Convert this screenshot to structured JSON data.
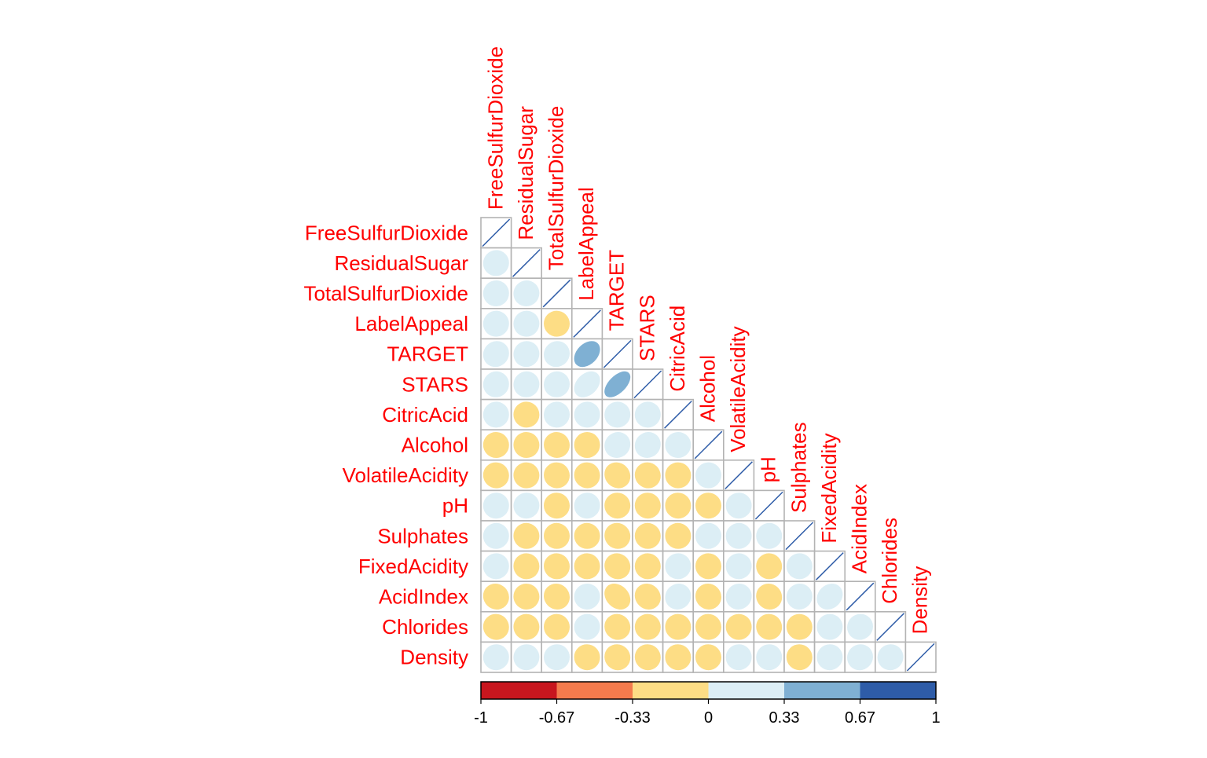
{
  "chart_data": {
    "type": "heatmap",
    "subtype": "correlation-matrix-lower-triangle",
    "title": "",
    "method": "ellipse",
    "variables": [
      "FreeSulfurDioxide",
      "ResidualSugar",
      "TotalSulfurDioxide",
      "LabelAppeal",
      "TARGET",
      "STARS",
      "CitricAcid",
      "Alcohol",
      "VolatileAcidity",
      "pH",
      "Sulphates",
      "FixedAcidity",
      "AcidIndex",
      "Chlorides",
      "Density"
    ],
    "matrix": [
      [
        1.0,
        0.02,
        0.01,
        0.01,
        0.06,
        0.02,
        0.01,
        -0.01,
        -0.02,
        0.01,
        0.01,
        0.01,
        -0.06,
        -0.02,
        0.01
      ],
      [
        0.02,
        1.0,
        0.02,
        0.01,
        0.02,
        0.02,
        -0.01,
        -0.01,
        -0.01,
        0.01,
        -0.01,
        -0.01,
        -0.01,
        -0.01,
        0.01
      ],
      [
        0.01,
        0.02,
        1.0,
        -0.01,
        0.05,
        0.02,
        0.01,
        -0.02,
        -0.02,
        -0.01,
        -0.01,
        -0.02,
        -0.05,
        -0.01,
        0.01
      ],
      [
        0.01,
        0.01,
        -0.01,
        1.0,
        0.36,
        0.33,
        0.01,
        0.0,
        -0.02,
        0.01,
        -0.01,
        -0.01,
        0.01,
        0.01,
        -0.01
      ],
      [
        0.06,
        0.02,
        0.05,
        0.36,
        1.0,
        0.56,
        0.01,
        0.06,
        -0.09,
        -0.01,
        -0.04,
        -0.05,
        -0.25,
        -0.04,
        -0.04
      ],
      [
        0.02,
        0.02,
        0.02,
        0.33,
        0.56,
        1.0,
        0.01,
        0.06,
        -0.04,
        -0.01,
        -0.01,
        -0.01,
        -0.09,
        -0.01,
        -0.02
      ],
      [
        0.01,
        -0.01,
        0.01,
        0.01,
        0.01,
        0.01,
        1.0,
        0.01,
        -0.01,
        -0.01,
        -0.01,
        0.01,
        0.06,
        -0.01,
        -0.01
      ],
      [
        -0.01,
        -0.01,
        -0.02,
        0.0,
        0.06,
        0.06,
        0.01,
        1.0,
        0.01,
        -0.01,
        0.01,
        -0.01,
        -0.04,
        -0.02,
        -0.01
      ],
      [
        -0.02,
        -0.01,
        -0.02,
        -0.02,
        -0.09,
        -0.04,
        -0.01,
        0.01,
        1.0,
        0.01,
        0.01,
        0.01,
        0.04,
        0.0,
        0.01
      ],
      [
        0.01,
        0.01,
        -0.01,
        0.01,
        -0.01,
        -0.01,
        -0.01,
        -0.01,
        0.01,
        1.0,
        0.01,
        -0.01,
        -0.05,
        -0.02,
        0.01
      ],
      [
        0.01,
        -0.01,
        -0.01,
        -0.01,
        -0.04,
        -0.01,
        -0.01,
        0.01,
        0.01,
        0.01,
        1.0,
        0.01,
        0.03,
        -0.01,
        -0.01
      ],
      [
        0.01,
        -0.01,
        -0.02,
        -0.01,
        -0.05,
        -0.01,
        0.01,
        -0.01,
        0.01,
        -0.01,
        0.01,
        1.0,
        0.18,
        0.01,
        0.01
      ],
      [
        -0.06,
        -0.01,
        -0.05,
        0.01,
        -0.25,
        -0.09,
        0.06,
        -0.04,
        0.04,
        -0.05,
        0.03,
        0.18,
        1.0,
        0.04,
        0.04
      ],
      [
        -0.02,
        -0.01,
        -0.01,
        0.01,
        -0.04,
        -0.01,
        -0.01,
        -0.02,
        0.0,
        -0.02,
        -0.01,
        0.01,
        0.04,
        1.0,
        0.02
      ],
      [
        0.01,
        0.01,
        0.01,
        -0.01,
        -0.04,
        -0.02,
        -0.01,
        -0.01,
        0.01,
        0.01,
        -0.01,
        0.01,
        0.04,
        0.02,
        1.0
      ]
    ],
    "color_scale": {
      "breaks": [
        -1,
        -0.67,
        -0.33,
        0,
        0.33,
        0.67,
        1
      ],
      "colors": [
        "#C8161E",
        "#F47B4D",
        "#FDDD85",
        "#DCEEF5",
        "#7FB0D3",
        "#2E5CA8"
      ],
      "tick_labels": [
        "-1",
        "-0.67",
        "-0.33",
        "0",
        "0.33",
        "0.67",
        "1"
      ]
    },
    "label_color": "#FF0000",
    "grid_color": "#B3B3B3",
    "diagonal_line_color": "#2E5CA8",
    "legend_position": "bottom"
  }
}
